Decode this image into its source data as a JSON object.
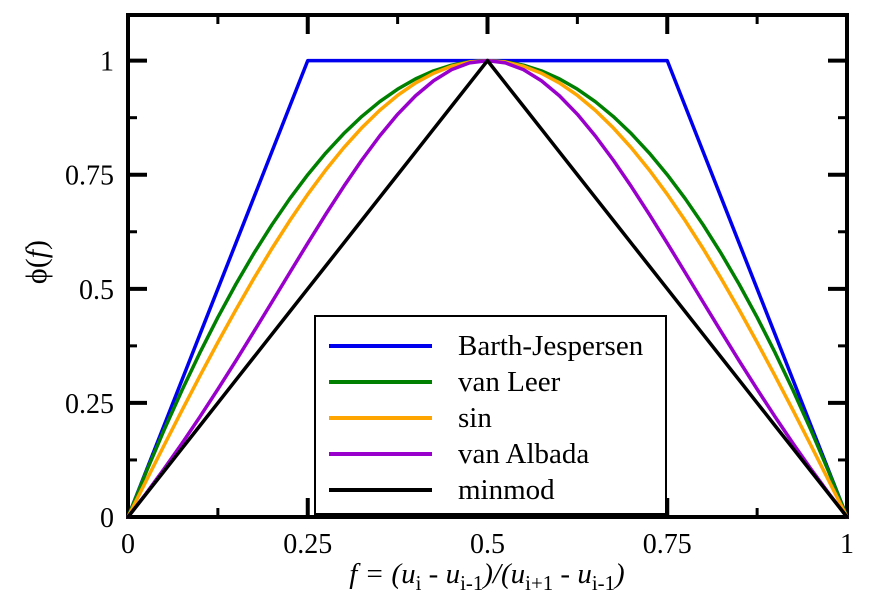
{
  "figure": {
    "background": "#ffffff",
    "axis_color": "#000000"
  },
  "chart_data": {
    "type": "line",
    "title": "",
    "xlabel": "f = (u_i - u_i-1)/(u_i+1 - u_i-1)",
    "ylabel": "phi(f)",
    "xlabel_parts": [
      {
        "t": "f",
        "i": 1
      },
      {
        "t": " = ("
      },
      {
        "t": "u",
        "i": 1
      },
      {
        "t": "i",
        "s": 1
      },
      {
        "t": " - "
      },
      {
        "t": "u",
        "i": 1
      },
      {
        "t": "i-1",
        "s": 1
      },
      {
        "t": ")/("
      },
      {
        "t": "u",
        "i": 1
      },
      {
        "t": "i+1",
        "s": 1
      },
      {
        "t": " - "
      },
      {
        "t": "u",
        "i": 1
      },
      {
        "t": "i-1",
        "s": 1
      },
      {
        "t": ")"
      }
    ],
    "ylabel_parts": [
      {
        "t": "ϕ("
      },
      {
        "t": "f",
        "i": 1
      },
      {
        "t": ")"
      }
    ],
    "xlim": [
      0,
      1
    ],
    "ylim": [
      0,
      1.1
    ],
    "grid": false,
    "x_ticks": {
      "major": [
        0,
        0.25,
        0.5,
        0.75,
        1
      ],
      "labels": [
        "0",
        "0.25",
        "0.5",
        "0.75",
        "1"
      ],
      "minor": [
        0.125,
        0.375,
        0.625,
        0.875
      ]
    },
    "y_ticks": {
      "major": [
        0,
        0.25,
        0.5,
        0.75,
        1
      ],
      "labels": [
        "0",
        "0.25",
        "0.5",
        "0.75",
        "1"
      ],
      "minor": [
        0.125,
        0.375,
        0.625,
        0.875
      ]
    },
    "legend_position": "inside-bottom-center",
    "x": [
      0,
      0.025,
      0.05,
      0.075,
      0.1,
      0.125,
      0.15,
      0.175,
      0.2,
      0.225,
      0.25,
      0.275,
      0.3,
      0.325,
      0.35,
      0.375,
      0.4,
      0.425,
      0.45,
      0.475,
      0.5,
      0.525,
      0.55,
      0.575,
      0.6,
      0.625,
      0.65,
      0.675,
      0.7,
      0.725,
      0.75,
      0.775,
      0.8,
      0.825,
      0.85,
      0.875,
      0.9,
      0.925,
      0.95,
      0.975,
      1
    ],
    "series": [
      {
        "name": "Barth-Jespersen",
        "color": "#0000ee",
        "values": [
          0,
          0.1,
          0.2,
          0.3,
          0.4,
          0.5,
          0.6,
          0.7,
          0.8,
          0.9,
          1,
          1,
          1,
          1,
          1,
          1,
          1,
          1,
          1,
          1,
          1,
          1,
          1,
          1,
          1,
          1,
          1,
          1,
          1,
          1,
          1,
          0.9,
          0.8,
          0.7,
          0.6,
          0.5,
          0.4,
          0.3,
          0.2,
          0.1,
          0
        ]
      },
      {
        "name": "van Leer",
        "color": "#008000",
        "values": [
          0,
          0.0975,
          0.19,
          0.2775,
          0.36,
          0.4375,
          0.51,
          0.5775,
          0.64,
          0.6975,
          0.75,
          0.7975,
          0.84,
          0.8775,
          0.91,
          0.9375,
          0.96,
          0.9775,
          0.99,
          0.9975,
          1,
          0.9975,
          0.99,
          0.9775,
          0.96,
          0.9375,
          0.91,
          0.8775,
          0.84,
          0.7975,
          0.75,
          0.6975,
          0.64,
          0.5775,
          0.51,
          0.4375,
          0.36,
          0.2775,
          0.19,
          0.0975,
          0
        ]
      },
      {
        "name": "sin",
        "color": "#ffa500",
        "values": [
          0,
          0.0785,
          0.1564,
          0.2334,
          0.309,
          0.3827,
          0.454,
          0.5225,
          0.5878,
          0.6494,
          0.7071,
          0.7604,
          0.809,
          0.8526,
          0.891,
          0.9239,
          0.9511,
          0.9724,
          0.9877,
          0.9969,
          1,
          0.9969,
          0.9877,
          0.9724,
          0.9511,
          0.9239,
          0.891,
          0.8526,
          0.809,
          0.7604,
          0.7071,
          0.6494,
          0.5878,
          0.5225,
          0.454,
          0.3827,
          0.309,
          0.2334,
          0.1564,
          0.0785,
          0
        ]
      },
      {
        "name": "van Albada",
        "color": "#9900cc",
        "values": [
          0,
          0.0512,
          0.105,
          0.1611,
          0.2195,
          0.28,
          0.3423,
          0.406,
          0.4706,
          0.5355,
          0.6,
          0.6632,
          0.7241,
          0.7817,
          0.8349,
          0.8824,
          0.9231,
          0.956,
          0.9802,
          0.995,
          1,
          0.995,
          0.9802,
          0.956,
          0.9231,
          0.8824,
          0.8349,
          0.7817,
          0.7241,
          0.6632,
          0.6,
          0.5355,
          0.4706,
          0.406,
          0.3423,
          0.28,
          0.2195,
          0.1611,
          0.105,
          0.0512,
          0
        ]
      },
      {
        "name": "minmod",
        "color": "#000000",
        "values": [
          0,
          0.05,
          0.1,
          0.15,
          0.2,
          0.25,
          0.3,
          0.35,
          0.4,
          0.45,
          0.5,
          0.55,
          0.6,
          0.65,
          0.7,
          0.75,
          0.8,
          0.85,
          0.9,
          0.95,
          1,
          0.95,
          0.9,
          0.85,
          0.8,
          0.75,
          0.7,
          0.65,
          0.6,
          0.55,
          0.5,
          0.45,
          0.4,
          0.35,
          0.3,
          0.25,
          0.2,
          0.15,
          0.1,
          0.05,
          0
        ]
      }
    ]
  }
}
